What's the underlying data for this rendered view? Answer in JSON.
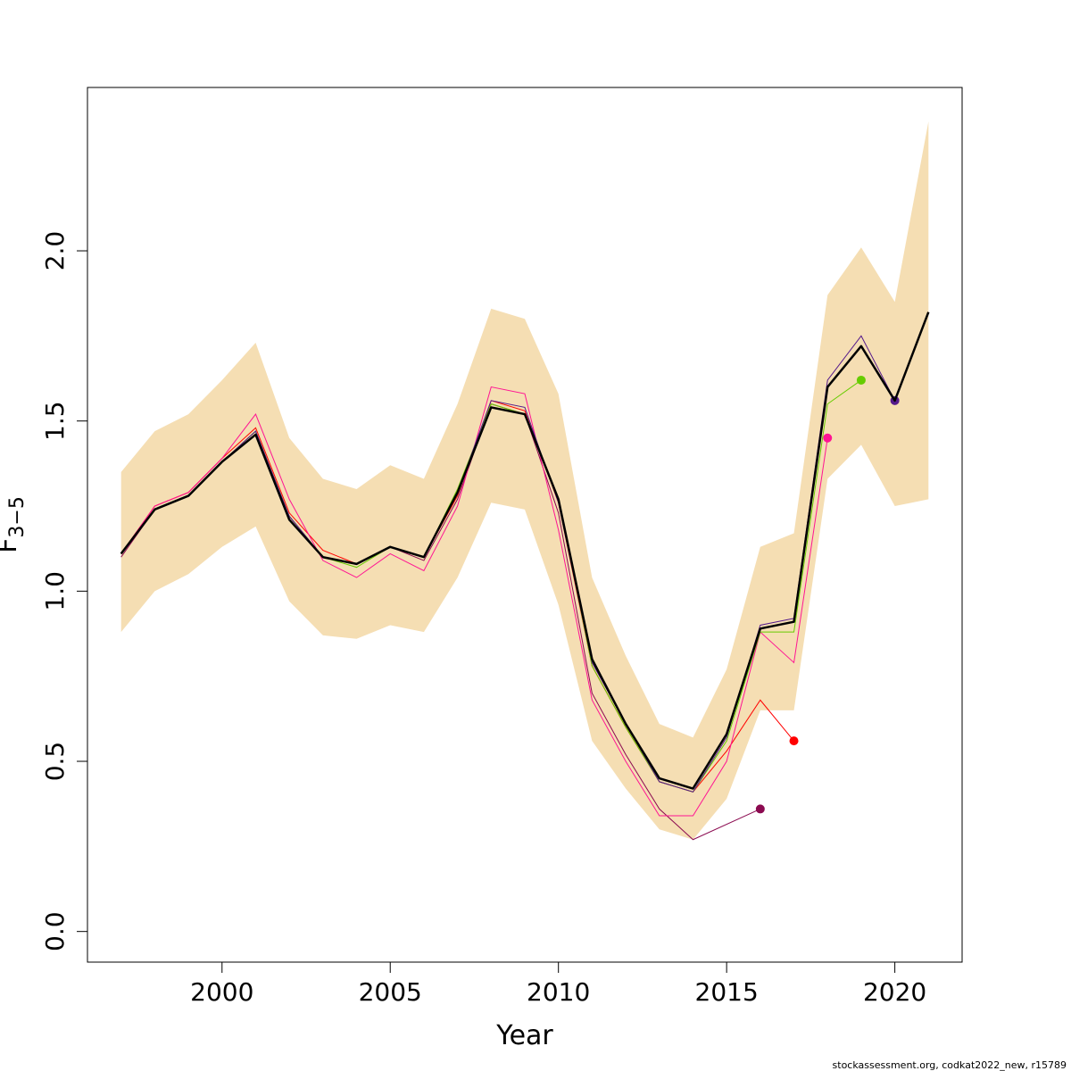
{
  "chart_data": {
    "type": "line",
    "xlabel": "Year",
    "ylabel": "F",
    "ylabel_subscript": "3−5",
    "xlim": [
      1996,
      2022
    ],
    "ylim": [
      -0.09,
      2.48
    ],
    "x_ticks": [
      2000,
      2005,
      2010,
      2015,
      2020
    ],
    "x_tick_labels": [
      "2000",
      "2005",
      "2010",
      "2015",
      "2020"
    ],
    "y_ticks": [
      0.0,
      0.5,
      1.0,
      1.5,
      2.0
    ],
    "y_tick_labels": [
      "0.0",
      "0.5",
      "1.0",
      "1.5",
      "2.0"
    ],
    "grid": false,
    "legend": "none",
    "band": {
      "color": "#f5deb3",
      "x": [
        1997,
        1998,
        1999,
        2000,
        2001,
        2002,
        2003,
        2004,
        2005,
        2006,
        2007,
        2008,
        2009,
        2010,
        2011,
        2012,
        2013,
        2014,
        2015,
        2016,
        2017,
        2018,
        2019,
        2020,
        2021
      ],
      "lower": [
        0.88,
        1.0,
        1.05,
        1.13,
        1.19,
        0.97,
        0.87,
        0.86,
        0.9,
        0.88,
        1.04,
        1.26,
        1.24,
        0.96,
        0.56,
        0.42,
        0.3,
        0.27,
        0.39,
        0.65,
        0.65,
        1.33,
        1.43,
        1.25,
        1.27
      ],
      "upper": [
        1.35,
        1.47,
        1.52,
        1.62,
        1.73,
        1.45,
        1.33,
        1.3,
        1.37,
        1.33,
        1.55,
        1.83,
        1.8,
        1.58,
        1.04,
        0.81,
        0.61,
        0.57,
        0.77,
        1.13,
        1.17,
        1.87,
        2.01,
        1.85,
        2.38
      ]
    },
    "main": {
      "color": "#000000",
      "x": [
        1997,
        1998,
        1999,
        2000,
        2001,
        2002,
        2003,
        2004,
        2005,
        2006,
        2007,
        2008,
        2009,
        2010,
        2011,
        2012,
        2013,
        2014,
        2015,
        2016,
        2017,
        2018,
        2019,
        2020,
        2021
      ],
      "values": [
        1.11,
        1.24,
        1.28,
        1.38,
        1.46,
        1.21,
        1.1,
        1.08,
        1.13,
        1.1,
        1.29,
        1.54,
        1.52,
        1.27,
        0.8,
        0.61,
        0.45,
        0.42,
        0.58,
        0.89,
        0.91,
        1.6,
        1.72,
        1.56,
        1.82
      ]
    },
    "series": [
      {
        "color": "#8b0a50",
        "x": [
          1997,
          1998,
          1999,
          2000,
          2001,
          2002,
          2003,
          2004,
          2005,
          2006,
          2007,
          2008,
          2009,
          2010,
          2011,
          2012,
          2013,
          2014,
          2016
        ],
        "values": [
          1.1,
          1.24,
          1.28,
          1.38,
          1.47,
          1.22,
          1.1,
          1.08,
          1.13,
          1.09,
          1.27,
          1.55,
          1.52,
          1.23,
          0.7,
          0.52,
          0.36,
          0.27,
          0.36
        ]
      },
      {
        "color": "#ff0000",
        "x": [
          1997,
          1998,
          1999,
          2000,
          2001,
          2002,
          2003,
          2004,
          2005,
          2006,
          2007,
          2008,
          2009,
          2010,
          2011,
          2012,
          2013,
          2014,
          2015,
          2016,
          2017
        ],
        "values": [
          1.11,
          1.25,
          1.29,
          1.39,
          1.48,
          1.23,
          1.12,
          1.08,
          1.13,
          1.1,
          1.28,
          1.56,
          1.53,
          1.26,
          0.78,
          0.6,
          0.44,
          0.41,
          0.53,
          0.68,
          0.56
        ]
      },
      {
        "color": "#ff1493",
        "x": [
          1997,
          1998,
          1999,
          2000,
          2001,
          2002,
          2003,
          2004,
          2005,
          2006,
          2007,
          2008,
          2009,
          2010,
          2011,
          2012,
          2013,
          2014,
          2015,
          2016,
          2017,
          2018
        ],
        "values": [
          1.11,
          1.25,
          1.29,
          1.39,
          1.52,
          1.27,
          1.09,
          1.04,
          1.11,
          1.06,
          1.25,
          1.6,
          1.58,
          1.18,
          0.68,
          0.5,
          0.34,
          0.34,
          0.5,
          0.88,
          0.79,
          1.45
        ]
      },
      {
        "color": "#66cc00",
        "x": [
          1997,
          1998,
          1999,
          2000,
          2001,
          2002,
          2003,
          2004,
          2005,
          2006,
          2007,
          2008,
          2009,
          2010,
          2011,
          2012,
          2013,
          2014,
          2015,
          2016,
          2017,
          2018,
          2019
        ],
        "values": [
          1.11,
          1.24,
          1.28,
          1.38,
          1.47,
          1.22,
          1.1,
          1.07,
          1.13,
          1.1,
          1.3,
          1.55,
          1.52,
          1.27,
          0.78,
          0.6,
          0.44,
          0.41,
          0.56,
          0.88,
          0.88,
          1.55,
          1.62
        ]
      },
      {
        "color": "#551a8b",
        "x": [
          1997,
          1998,
          1999,
          2000,
          2001,
          2002,
          2003,
          2004,
          2005,
          2006,
          2007,
          2008,
          2009,
          2010,
          2011,
          2012,
          2013,
          2014,
          2015,
          2016,
          2017,
          2018,
          2019,
          2020
        ],
        "values": [
          1.11,
          1.24,
          1.28,
          1.38,
          1.47,
          1.22,
          1.1,
          1.08,
          1.13,
          1.1,
          1.29,
          1.56,
          1.54,
          1.26,
          0.79,
          0.61,
          0.44,
          0.41,
          0.57,
          0.9,
          0.92,
          1.62,
          1.75,
          1.56
        ]
      }
    ]
  },
  "footer": {
    "text": "stockassessment.org, codkat2022_new, r15789"
  }
}
